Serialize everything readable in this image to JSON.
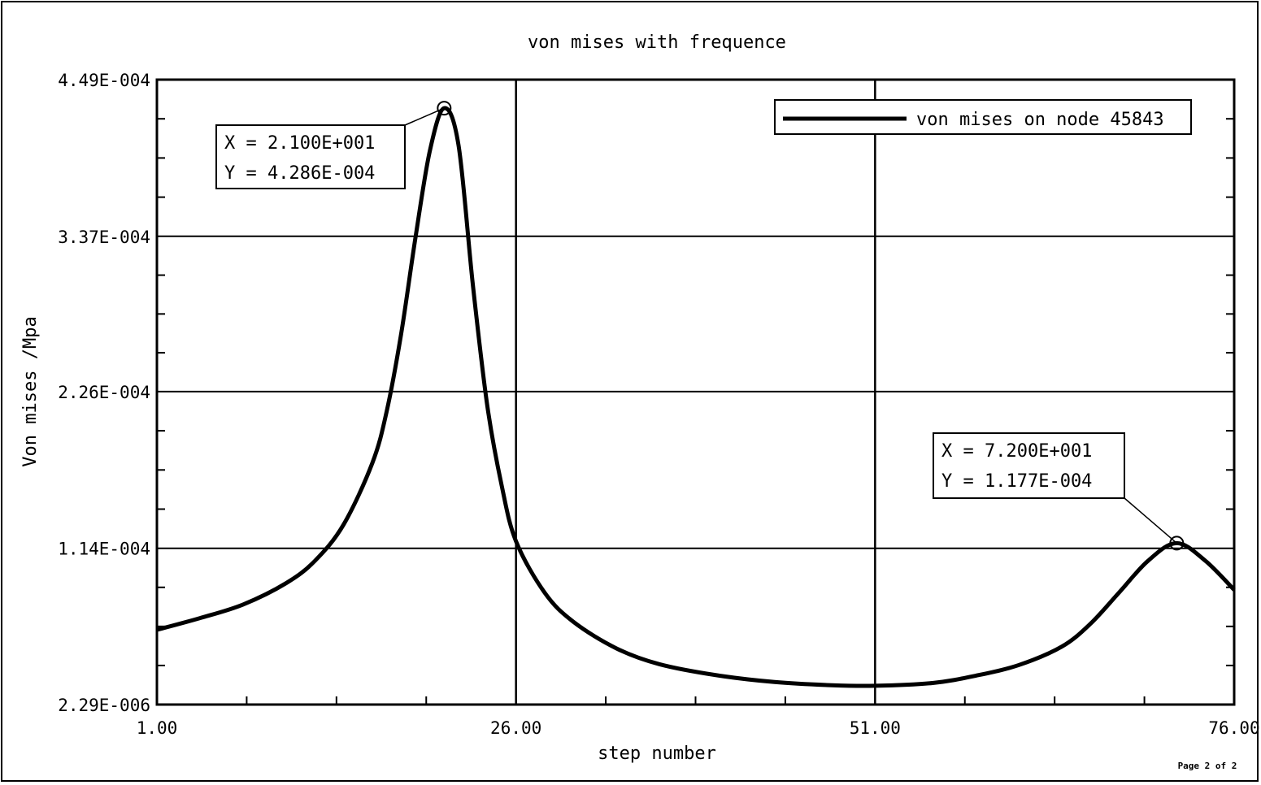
{
  "chart_data": {
    "type": "line",
    "title": "von mises with frequence",
    "xlabel": "step number",
    "ylabel": "Von mises /Mpa",
    "xlim": [
      1,
      76
    ],
    "ylim": [
      2.29e-06,
      0.000449
    ],
    "x_ticks": [
      1,
      26,
      51,
      76
    ],
    "x_tick_labels": [
      "1.00",
      "26.00",
      "51.00",
      "76.00"
    ],
    "y_ticks": [
      2.29e-06,
      0.000114,
      0.000226,
      0.000337,
      0.000449
    ],
    "y_tick_labels": [
      "2.29E-006",
      "1.14E-004",
      "2.26E-004",
      "3.37E-004",
      "4.49E-004"
    ],
    "grid": true,
    "legend_position": "top-right",
    "series": [
      {
        "name": "von mises on node 45843",
        "color": "#000000",
        "x": [
          1,
          4,
          7,
          10,
          12,
          14,
          16,
          17,
          18,
          19,
          20,
          21,
          22,
          23,
          24,
          25,
          26,
          28,
          30,
          33,
          36,
          40,
          44,
          48,
          51,
          55,
          58,
          61,
          64,
          66,
          68,
          70,
          72,
          74,
          76
        ],
        "y": [
          5.57e-05,
          6.41e-05,
          7.38e-05,
          8.91e-05,
          0.000105,
          0.000131,
          0.000175,
          0.000212,
          0.000267,
          0.000336,
          0.000398,
          0.0004286,
          0.000402,
          0.000302,
          0.000216,
          0.000159,
          0.000119,
          8.22e-05,
          6.14e-05,
          4.24e-05,
          3.11e-05,
          2.32e-05,
          1.84e-05,
          1.61e-05,
          1.57e-05,
          1.77e-05,
          2.29e-05,
          3.05e-05,
          4.37e-05,
          6.01e-05,
          8.25e-05,
          0.000105,
          0.0001177,
          0.000105,
          8.43e-05
        ]
      }
    ],
    "annotations": [
      {
        "x": 21,
        "y": 0.0004286,
        "x_text": "X =  2.100E+001",
        "y_text": "Y =  4.286E-004"
      },
      {
        "x": 72,
        "y": 0.0001177,
        "x_text": "X =  7.200E+001",
        "y_text": "Y =  1.177E-004"
      }
    ]
  },
  "footer": {
    "page_label": "Page 2 of 2"
  }
}
